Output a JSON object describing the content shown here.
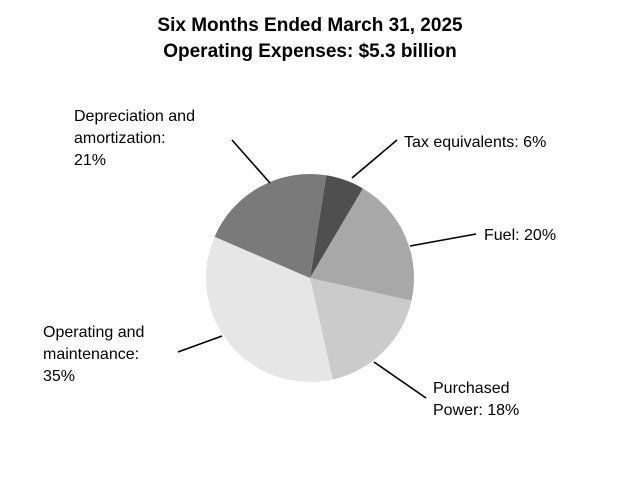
{
  "chart_data": {
    "type": "pie",
    "title": "Six Months Ended March 31, 2025",
    "subtitle": "Operating Expenses: $5.3 billion",
    "slices": [
      {
        "name": "Tax equivalents",
        "value": 6,
        "label_lines": [
          "Tax equivalents: 6%"
        ],
        "color": "#4f4f4f"
      },
      {
        "name": "Fuel",
        "value": 20,
        "label_lines": [
          "Fuel: 20%"
        ],
        "color": "#a8a8a8"
      },
      {
        "name": "Purchased Power",
        "value": 18,
        "label_lines": [
          "Purchased",
          "Power: 18%"
        ],
        "color": "#cbcbcb"
      },
      {
        "name": "Operating and maintenance",
        "value": 35,
        "label_lines": [
          "Operating and",
          "maintenance:",
          "35%"
        ],
        "color": "#e6e6e6"
      },
      {
        "name": "Depreciation and amortization",
        "value": 21,
        "label_lines": [
          "Depreciation and",
          "amortization:",
          "21%"
        ],
        "color": "#7a7a7a"
      }
    ]
  }
}
